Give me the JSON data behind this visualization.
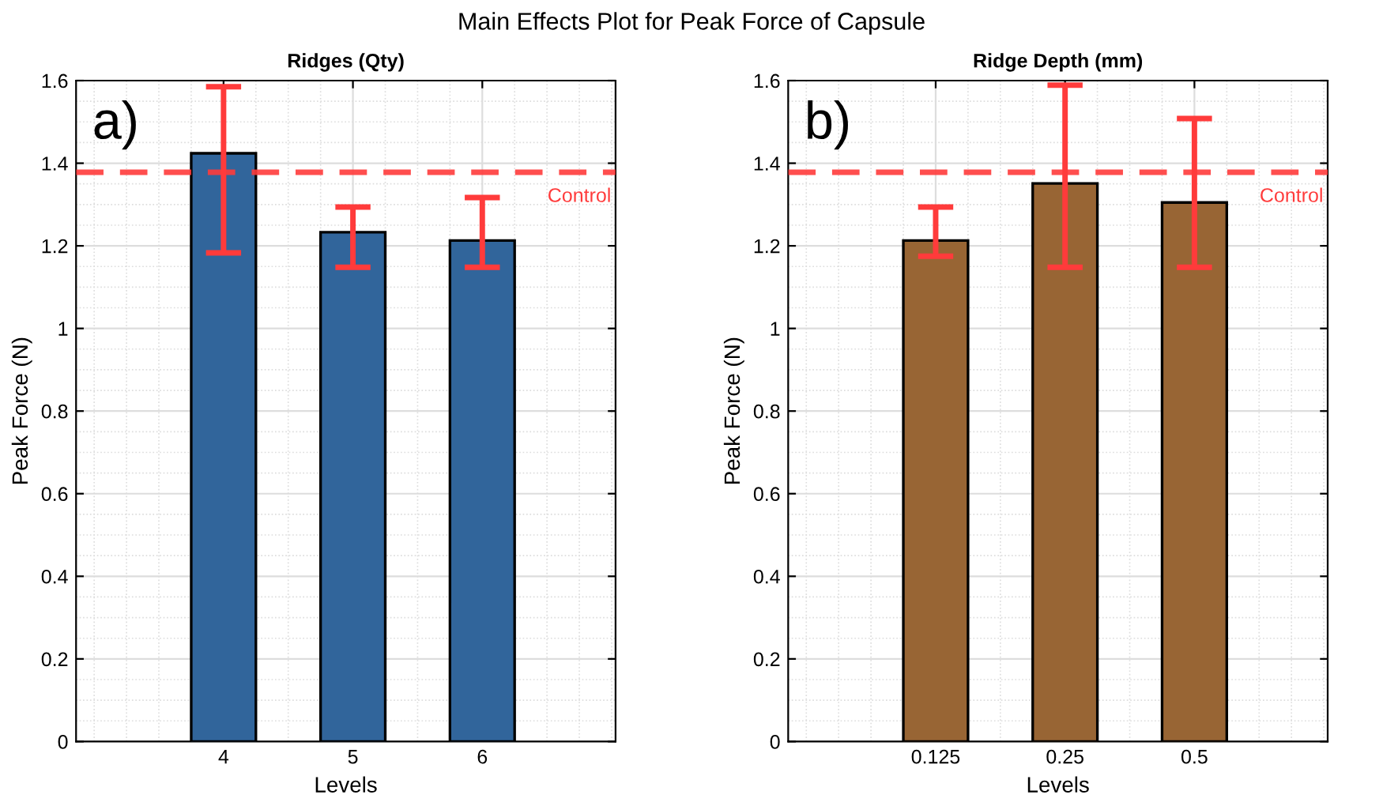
{
  "chart_data": [
    {
      "type": "bar",
      "title": "Ridges (Qty)",
      "xlabel": "Levels",
      "ylabel": "Peak Force (N)",
      "annotations": [
        "Main Effects Plot for Peak Force of Capsule",
        "a)"
      ],
      "categories": [
        "4",
        "5",
        "6"
      ],
      "series": [
        {
          "color": "#31659b",
          "values": [
            1.424,
            1.233,
            1.213
          ],
          "errors": [
            [
              1.183,
              1.585
            ],
            [
              1.148,
              1.294
            ],
            [
              1.148,
              1.317
            ]
          ]
        }
      ],
      "ylim": [
        0,
        1.6
      ],
      "yticks": [
        0,
        0.2,
        0.4,
        0.6,
        0.8,
        1,
        1.2,
        1.4,
        1.6
      ],
      "grid": true,
      "ref_lines": [
        {
          "axis": "y",
          "value": 1.378,
          "label": "Control",
          "color": "#ff3b3b",
          "line_style": "dashed"
        }
      ]
    },
    {
      "type": "bar",
      "title": "Ridge Depth (mm)",
      "xlabel": "Levels",
      "ylabel": "Peak Force (N)",
      "annotations": [
        "b)"
      ],
      "categories": [
        "0.125",
        "0.25",
        "0.5"
      ],
      "series": [
        {
          "color": "#986534",
          "values": [
            1.213,
            1.351,
            1.305
          ],
          "errors": [
            [
              1.175,
              1.294
            ],
            [
              1.148,
              1.589
            ],
            [
              1.148,
              1.508
            ]
          ]
        }
      ],
      "ylim": [
        0,
        1.6
      ],
      "yticks": [
        0,
        0.2,
        0.4,
        0.6,
        0.8,
        1,
        1.2,
        1.4,
        1.6
      ],
      "grid": true,
      "ref_lines": [
        {
          "axis": "y",
          "value": 1.378,
          "label": "Control",
          "color": "#ff3b3b",
          "line_style": "dashed"
        }
      ]
    }
  ]
}
